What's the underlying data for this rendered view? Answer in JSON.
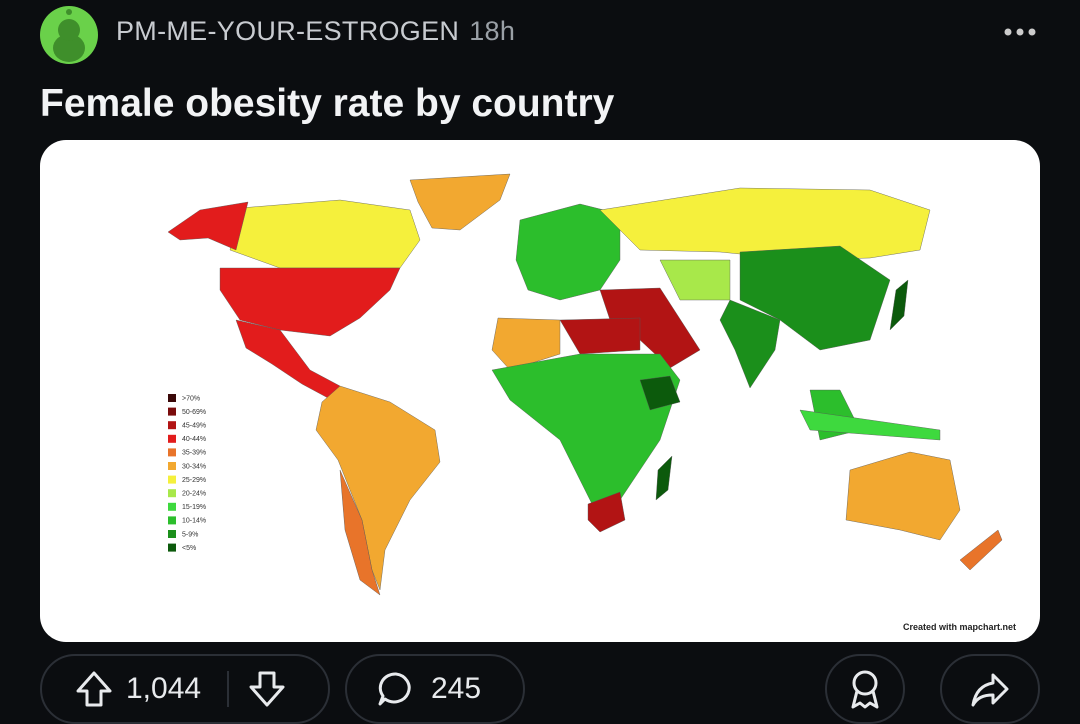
{
  "post": {
    "author": "PM-ME-YOUR-ESTROGEN",
    "age": "18h",
    "title": "Female obesity rate by country",
    "image": {
      "legend": [
        {
          "label": ">70%",
          "color": "#3a0808"
        },
        {
          "label": "50-69%",
          "color": "#7a0c0c"
        },
        {
          "label": "45-49%",
          "color": "#b21414"
        },
        {
          "label": "40-44%",
          "color": "#e21c1c"
        },
        {
          "label": "35-39%",
          "color": "#e8742a"
        },
        {
          "label": "30-34%",
          "color": "#f2a830"
        },
        {
          "label": "25-29%",
          "color": "#f5f03c"
        },
        {
          "label": "20-24%",
          "color": "#a8e84a"
        },
        {
          "label": "15-19%",
          "color": "#3ed93e"
        },
        {
          "label": "10-14%",
          "color": "#2cbe2c"
        },
        {
          "label": "5-9%",
          "color": "#1b8f1b"
        },
        {
          "label": "<5%",
          "color": "#0c5a0c"
        }
      ],
      "credit": "Created with mapchart.net"
    },
    "upvotes": "1,044",
    "comments": "245"
  }
}
